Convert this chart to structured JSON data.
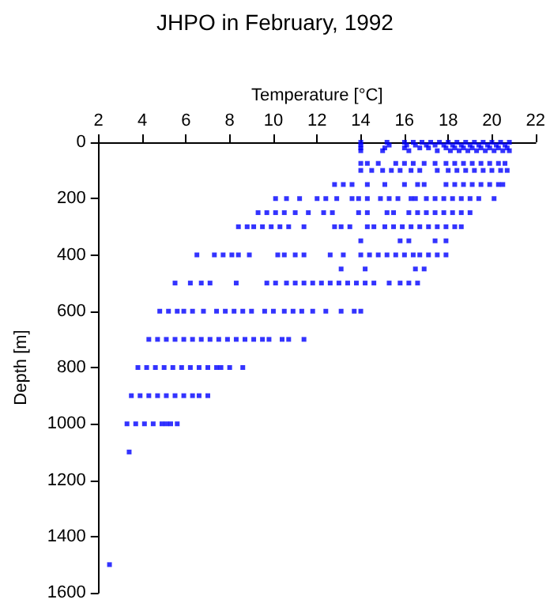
{
  "chart_data": {
    "type": "scatter",
    "title": "JHPO in February, 1992",
    "xlabel": "Temperature [°C]",
    "ylabel": "Depth [m]",
    "xlim": [
      2,
      22
    ],
    "xticks": [
      2,
      4,
      6,
      8,
      10,
      12,
      14,
      16,
      18,
      20,
      22
    ],
    "ylim": [
      1600,
      0
    ],
    "yticks": [
      0,
      200,
      400,
      600,
      800,
      1000,
      1200,
      1400,
      1600
    ],
    "grid": false,
    "marker": "square",
    "series": [
      {
        "color": "#0000ff",
        "x": [
          14,
          15.2,
          16,
          16.4,
          16.8,
          17.2,
          17.6,
          18,
          18.4,
          18.8,
          19.2,
          19.6,
          20,
          20.4,
          20.8,
          14,
          15.3,
          16.1,
          16.5,
          17,
          17.4,
          17.8,
          18.2,
          18.6,
          19,
          19.4,
          19.8,
          20.2,
          20.6,
          14,
          15.1,
          16,
          16.7,
          17.1,
          17.9,
          18.3,
          18.7,
          19.1,
          19.5,
          19.9,
          20.3,
          20.7,
          14,
          15,
          16.2,
          17.5,
          18.1,
          18.5,
          18.9,
          19.3,
          19.7,
          20.1,
          20.5,
          20.8,
          14,
          14.3,
          14.8,
          15.6,
          16,
          16.4,
          16.9,
          17.4,
          17.9,
          18.3,
          18.7,
          19.1,
          19.5,
          19.9,
          20.3,
          20.6,
          14,
          14.5,
          15,
          15.4,
          15.8,
          16.3,
          16.7,
          17.5,
          18,
          18.4,
          18.8,
          19.2,
          19.6,
          20,
          20.4,
          20.7,
          12.8,
          13.2,
          13.6,
          14.3,
          15.1,
          16,
          16.6,
          16.9,
          17.9,
          18.3,
          18.7,
          19.1,
          19.5,
          19.9,
          20.3,
          20.5,
          10.1,
          10.6,
          11.2,
          12,
          12.4,
          12.9,
          13.6,
          13.9,
          14.3,
          14.9,
          15.3,
          15.7,
          16.3,
          16.5,
          17,
          17.4,
          17.8,
          18.2,
          18.6,
          19,
          19.4,
          20.1,
          9.3,
          9.7,
          10.1,
          10.5,
          11,
          11.6,
          12.3,
          12.7,
          13.9,
          14.3,
          15.2,
          15.5,
          16.2,
          16.6,
          17,
          17.4,
          17.8,
          18.2,
          18.6,
          19,
          8.4,
          8.8,
          9.1,
          9.5,
          9.9,
          10.3,
          10.7,
          11.4,
          12.8,
          13.1,
          13.5,
          14.3,
          14.6,
          15.1,
          15.5,
          15.9,
          16.3,
          16.7,
          17.1,
          17.5,
          17.9,
          18.3,
          18.6,
          14,
          15.8,
          16.2,
          17.4,
          17.9,
          6.5,
          7.3,
          7.7,
          8.1,
          8.4,
          8.9,
          10.2,
          10.5,
          11,
          11.4,
          12.6,
          13.2,
          14,
          14.4,
          14.8,
          15.2,
          15.6,
          16,
          16.4,
          16.7,
          17.1,
          17.5,
          17.9,
          13.1,
          14.2,
          16.5,
          16.9,
          5.5,
          6.2,
          6.7,
          7.1,
          8.3,
          9.7,
          10.1,
          10.6,
          11,
          11.4,
          11.8,
          12.2,
          12.6,
          13,
          13.4,
          13.8,
          14.2,
          14.6,
          15.3,
          15.8,
          16.2,
          16.6,
          4.8,
          5.2,
          5.6,
          5.9,
          6.3,
          6.8,
          7.4,
          7.8,
          8.2,
          8.6,
          9,
          9.6,
          10,
          10.5,
          10.9,
          11.3,
          11.8,
          12.4,
          13.1,
          13.7,
          14,
          4.3,
          4.7,
          5.1,
          5.5,
          5.9,
          6.3,
          6.7,
          7.1,
          7.5,
          7.9,
          8.3,
          8.7,
          9.1,
          9.5,
          9.8,
          10.4,
          10.7,
          11.4,
          3.8,
          4.2,
          4.6,
          5,
          5.4,
          5.8,
          6.2,
          6.6,
          7,
          7.4,
          7.6,
          8,
          8.6,
          3.5,
          3.9,
          4.3,
          4.7,
          5.1,
          5.5,
          5.9,
          6.3,
          6.6,
          7,
          3.3,
          3.7,
          4.1,
          4.5,
          4.9,
          5.1,
          5.3,
          5.6,
          3.4,
          2.5
        ],
        "values": [
          0,
          0,
          0,
          0,
          0,
          0,
          0,
          0,
          0,
          0,
          0,
          0,
          0,
          0,
          0,
          10,
          10,
          10,
          10,
          10,
          10,
          10,
          10,
          10,
          10,
          10,
          10,
          10,
          10,
          20,
          20,
          20,
          20,
          20,
          20,
          20,
          20,
          20,
          20,
          20,
          20,
          20,
          30,
          30,
          30,
          30,
          30,
          30,
          30,
          30,
          30,
          30,
          30,
          30,
          75,
          75,
          75,
          75,
          75,
          75,
          75,
          75,
          75,
          75,
          75,
          75,
          75,
          75,
          75,
          75,
          100,
          100,
          100,
          100,
          100,
          100,
          100,
          100,
          100,
          100,
          100,
          100,
          100,
          100,
          100,
          100,
          150,
          150,
          150,
          150,
          150,
          150,
          150,
          150,
          150,
          150,
          150,
          150,
          150,
          150,
          150,
          150,
          200,
          200,
          200,
          200,
          200,
          200,
          200,
          200,
          200,
          200,
          200,
          200,
          200,
          200,
          200,
          200,
          200,
          200,
          200,
          200,
          200,
          200,
          250,
          250,
          250,
          250,
          250,
          250,
          250,
          250,
          250,
          250,
          250,
          250,
          250,
          250,
          250,
          250,
          250,
          250,
          250,
          250,
          300,
          300,
          300,
          300,
          300,
          300,
          300,
          300,
          300,
          300,
          300,
          300,
          300,
          300,
          300,
          300,
          300,
          300,
          300,
          300,
          300,
          300,
          300,
          350,
          350,
          350,
          350,
          350,
          400,
          400,
          400,
          400,
          400,
          400,
          400,
          400,
          400,
          400,
          400,
          400,
          400,
          400,
          400,
          400,
          400,
          400,
          400,
          400,
          400,
          400,
          400,
          450,
          450,
          450,
          450,
          500,
          500,
          500,
          500,
          500,
          500,
          500,
          500,
          500,
          500,
          500,
          500,
          500,
          500,
          500,
          500,
          500,
          500,
          500,
          500,
          500,
          500,
          600,
          600,
          600,
          600,
          600,
          600,
          600,
          600,
          600,
          600,
          600,
          600,
          600,
          600,
          600,
          600,
          600,
          600,
          600,
          600,
          600,
          700,
          700,
          700,
          700,
          700,
          700,
          700,
          700,
          700,
          700,
          700,
          700,
          700,
          700,
          700,
          700,
          700,
          700,
          800,
          800,
          800,
          800,
          800,
          800,
          800,
          800,
          800,
          800,
          800,
          800,
          800,
          900,
          900,
          900,
          900,
          900,
          900,
          900,
          900,
          900,
          900,
          1000,
          1000,
          1000,
          1000,
          1000,
          1000,
          1000,
          1000,
          1100,
          1500
        ]
      }
    ]
  }
}
